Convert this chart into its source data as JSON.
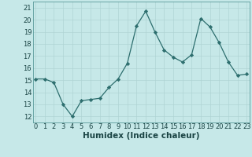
{
  "x": [
    0,
    1,
    2,
    3,
    4,
    5,
    6,
    7,
    8,
    9,
    10,
    11,
    12,
    13,
    14,
    15,
    16,
    17,
    18,
    19,
    20,
    21,
    22,
    23
  ],
  "y": [
    15.1,
    15.1,
    14.8,
    13.0,
    12.0,
    13.3,
    13.4,
    13.5,
    14.4,
    15.1,
    16.4,
    19.5,
    20.7,
    19.0,
    17.5,
    16.9,
    16.5,
    17.1,
    20.1,
    19.4,
    18.1,
    16.5,
    15.4,
    15.5
  ],
  "line_color": "#2d6e6e",
  "marker": "D",
  "marker_size": 2.2,
  "bg_color": "#c6e8e8",
  "grid_color": "#b0d4d4",
  "xlabel": "Humidex (Indice chaleur)",
  "xlabel_fontsize": 7.5,
  "ytick_labels": [
    "12",
    "13",
    "14",
    "15",
    "16",
    "17",
    "18",
    "19",
    "20",
    "21"
  ],
  "ytick_vals": [
    12,
    13,
    14,
    15,
    16,
    17,
    18,
    19,
    20,
    21
  ],
  "xtick_vals": [
    0,
    1,
    2,
    3,
    4,
    5,
    6,
    7,
    8,
    9,
    10,
    11,
    12,
    13,
    14,
    15,
    16,
    17,
    18,
    19,
    20,
    21,
    22,
    23
  ],
  "xlim": [
    -0.3,
    23.3
  ],
  "ylim": [
    11.5,
    21.5
  ],
  "tick_fontsize": 6.0
}
